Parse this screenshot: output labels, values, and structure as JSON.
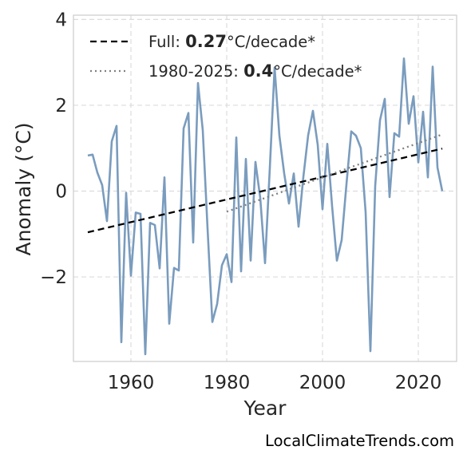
{
  "chart_data": {
    "type": "line",
    "xlabel": "Year",
    "ylabel": "Anomaly (°C)",
    "xlim": [
      1948,
      2028
    ],
    "ylim": [
      -3.97,
      4.1
    ],
    "x_ticks": [
      1960,
      1980,
      2000,
      2020
    ],
    "y_ticks": [
      -2,
      0,
      2,
      4
    ],
    "y_tick_labels": [
      "−2",
      "0",
      "2",
      "4"
    ],
    "grid": true,
    "legend_position": "top-left",
    "colors": {
      "series": "#7a9cbe",
      "full_trend": "#000000",
      "recent_trend": "#808080",
      "grid": "#dcdcdc",
      "frame": "#cccccc"
    },
    "series": [
      {
        "x": [
          1951,
          1952,
          1953,
          1954,
          1955,
          1956,
          1957,
          1958,
          1959,
          1960,
          1961,
          1962,
          1963,
          1964,
          1965,
          1966,
          1967,
          1968,
          1969,
          1970,
          1971,
          1972,
          1973,
          1974,
          1975,
          1976,
          1977,
          1978,
          1979,
          1980,
          1981,
          1982,
          1983,
          1984,
          1985,
          1986,
          1987,
          1988,
          1989,
          1990,
          1991,
          1992,
          1993,
          1994,
          1995,
          1996,
          1997,
          1998,
          1999,
          2000,
          2001,
          2002,
          2003,
          2004,
          2005,
          2006,
          2007,
          2008,
          2009,
          2010,
          2011,
          2012,
          2013,
          2014,
          2015,
          2016,
          2017,
          2018,
          2019,
          2020,
          2021,
          2022,
          2023,
          2024,
          2025
        ],
        "values": [
          0.83,
          0.85,
          0.43,
          0.14,
          -0.7,
          1.16,
          1.52,
          -3.52,
          -0.04,
          -1.97,
          -0.5,
          -0.53,
          -3.8,
          -0.74,
          -0.79,
          -1.8,
          0.32,
          -3.09,
          -1.79,
          -1.85,
          1.46,
          1.82,
          -1.2,
          2.52,
          1.42,
          -0.87,
          -3.05,
          -2.63,
          -1.73,
          -1.47,
          -2.12,
          1.25,
          -1.87,
          0.75,
          -1.62,
          0.68,
          -0.16,
          -1.68,
          0.54,
          2.88,
          1.29,
          0.41,
          -0.29,
          0.41,
          -0.83,
          0.33,
          1.3,
          1.87,
          1.08,
          -0.42,
          1.1,
          -0.35,
          -1.62,
          -1.14,
          0.16,
          1.39,
          1.29,
          1.0,
          -0.49,
          -3.73,
          0.12,
          1.65,
          2.15,
          -0.14,
          1.35,
          1.27,
          3.09,
          1.57,
          2.21,
          0.67,
          1.85,
          0.32,
          2.9,
          0.55,
          0.0
        ]
      }
    ],
    "trends": [
      {
        "x": [
          1951,
          2025
        ],
        "values": [
          -0.96,
          0.99
        ]
      },
      {
        "x": [
          1980,
          2025
        ],
        "values": [
          -0.48,
          1.32
        ]
      }
    ],
    "legend": [
      {
        "prefix": "Full: ",
        "value": "0.27",
        "suffix": "°C/decade*"
      },
      {
        "prefix": "1980-2025: ",
        "value": "0.4",
        "suffix": "°C/decade*"
      }
    ]
  },
  "credit": "LocalClimateTrends.com"
}
